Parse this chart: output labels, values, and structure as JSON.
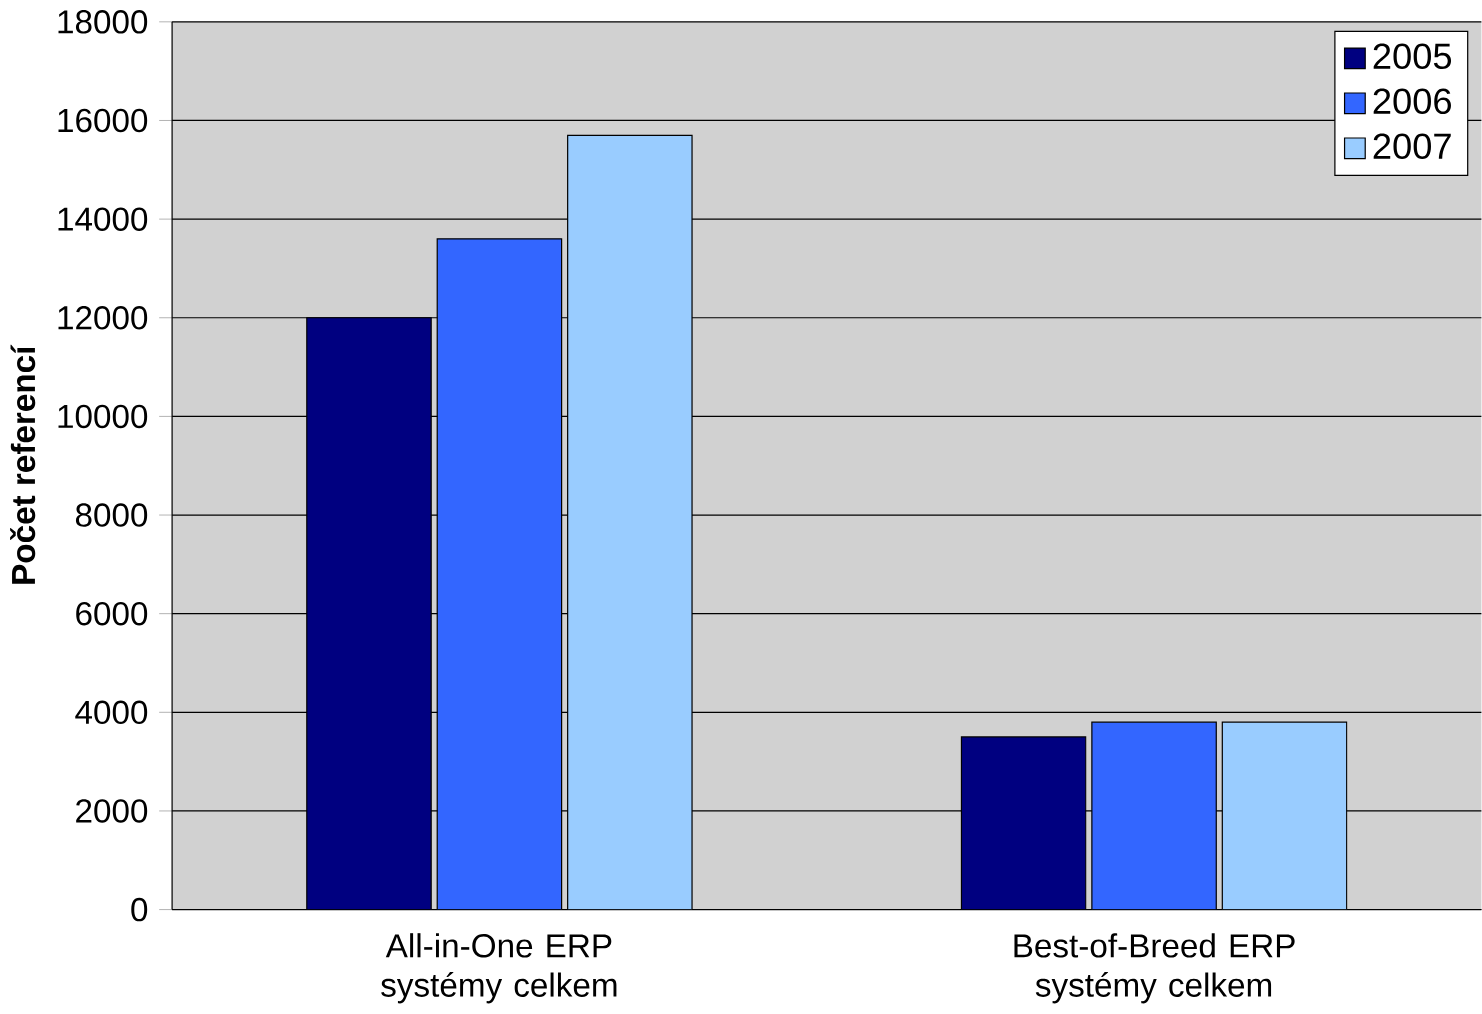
{
  "chart_data": {
    "type": "bar",
    "ylabel": "Počet referencí",
    "categories": [
      "All-in-One ERP systémy celkem",
      "Best-of-Breed ERP systémy celkem"
    ],
    "series": [
      {
        "name": "2005",
        "color": "#000080",
        "values": [
          12000,
          3500
        ]
      },
      {
        "name": "2006",
        "color": "#3366ff",
        "values": [
          13600,
          3800
        ]
      },
      {
        "name": "2007",
        "color": "#99ccff",
        "values": [
          15700,
          3800
        ]
      }
    ],
    "ylim": [
      0,
      18000
    ],
    "yticks": [
      0,
      2000,
      4000,
      6000,
      8000,
      10000,
      12000,
      14000,
      16000,
      18000
    ],
    "grid": "y",
    "legend": "top right"
  }
}
